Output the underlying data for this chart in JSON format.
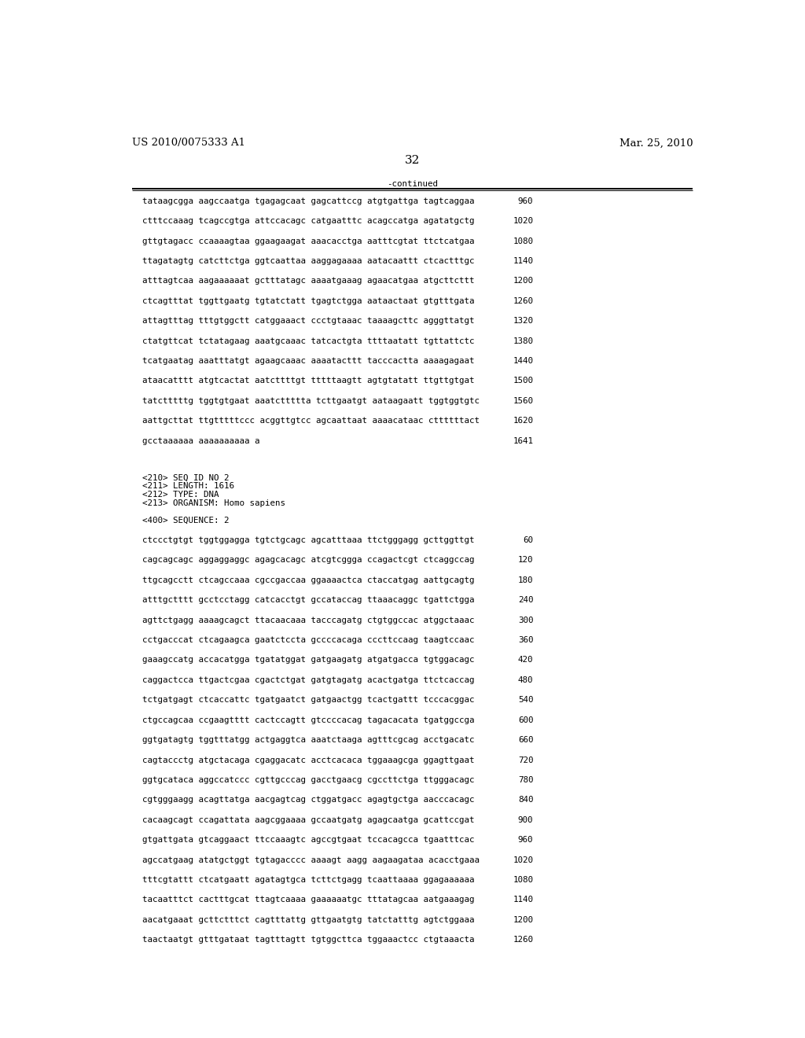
{
  "page_number": "32",
  "header_left": "US 2010/0075333 A1",
  "header_right": "Mar. 25, 2010",
  "continued_label": "-continued",
  "background_color": "#ffffff",
  "text_color": "#000000",
  "font_size_header": 9.5,
  "font_size_body": 7.8,
  "font_size_page_num": 11,
  "sequence_lines_part1": [
    [
      "tataagcgga aagccaatga tgagagcaat gagcattccg atgtgattga tagtcaggaa",
      "960"
    ],
    [
      "ctttccaaag tcagccgtga attccacagc catgaatttc acagccatga agatatgctg",
      "1020"
    ],
    [
      "gttgtagacc ccaaaagtaa ggaagaagat aaacacctga aatttcgtat ttctcatgaa",
      "1080"
    ],
    [
      "ttagatagtg catcttctga ggtcaattaa aaggagaaaa aatacaattt ctcactttgc",
      "1140"
    ],
    [
      "atttagtcaa aagaaaaaat gctttatagc aaaatgaaag agaacatgaa atgcttcttt",
      "1200"
    ],
    [
      "ctcagtttat tggttgaatg tgtatctatt tgagtctgga aataactaat gtgtttgata",
      "1260"
    ],
    [
      "attagtttag tttgtggctt catggaaact ccctgtaaac taaaagcttc agggttatgt",
      "1320"
    ],
    [
      "ctatgttcat tctatagaag aaatgcaaac tatcactgta ttttaatatt tgttattctc",
      "1380"
    ],
    [
      "tcatgaatag aaatttatgt agaagcaaac aaaatacttt tacccactta aaaagagaat",
      "1440"
    ],
    [
      "ataacatttt atgtcactat aatcttttgt tttttaagtt agtgtatatt ttgttgtgat",
      "1500"
    ],
    [
      "tatctttttg tggtgtgaat aaatcttttta tcttgaatgt aataagaatt tggtggtgtc",
      "1560"
    ],
    [
      "aattgcttat ttgtttttccc acggttgtcc agcaattaat aaaacataac cttttttact",
      "1620"
    ],
    [
      "gcctaaaaaa aaaaaaaaaa a",
      "1641"
    ]
  ],
  "metadata_lines": [
    "<210> SEQ ID NO 2",
    "<211> LENGTH: 1616",
    "<212> TYPE: DNA",
    "<213> ORGANISM: Homo sapiens"
  ],
  "sequence2_label": "<400> SEQUENCE: 2",
  "sequence_lines_part2": [
    [
      "ctccctgtgt tggtggagga tgtctgcagc agcatttaaa ttctgggagg gcttggttgt",
      "60"
    ],
    [
      "cagcagcagc aggaggaggc agagcacagc atcgtcggga ccagactcgt ctcaggccag",
      "120"
    ],
    [
      "ttgcagcctt ctcagccaaa cgccgaccaa ggaaaactca ctaccatgag aattgcagtg",
      "180"
    ],
    [
      "atttgctttt gcctcctagg catcacctgt gccataccag ttaaacaggc tgattctgga",
      "240"
    ],
    [
      "agttctgagg aaaagcagct ttacaacaaa tacccagatg ctgtggccac atggctaaac",
      "300"
    ],
    [
      "cctgacccat ctcagaagca gaatctccta gccccacaga cccttccaag taagtccaac",
      "360"
    ],
    [
      "gaaagccatg accacatgga tgatatggat gatgaagatg atgatgacca tgtggacagc",
      "420"
    ],
    [
      "caggactcca ttgactcgaa cgactctgat gatgtagatg acactgatga ttctcaccag",
      "480"
    ],
    [
      "tctgatgagt ctcaccattc tgatgaatct gatgaactgg tcactgattt tcccacggac",
      "540"
    ],
    [
      "ctgccagcaa ccgaagtttt cactccagtt gtccccacag tagacacata tgatggccga",
      "600"
    ],
    [
      "ggtgatagtg tggtttatgg actgaggtca aaatctaaga agtttcgcag acctgacatc",
      "660"
    ],
    [
      "cagtaccctg atgctacaga cgaggacatc acctcacaca tggaaagcga ggagttgaat",
      "720"
    ],
    [
      "ggtgcataca aggccatccc cgttgcccag gacctgaacg cgccttctga ttgggacagc",
      "780"
    ],
    [
      "cgtgggaagg acagttatga aacgagtcag ctggatgacc agagtgctga aacccacagc",
      "840"
    ],
    [
      "cacaagcagt ccagattata aagcggaaaa gccaatgatg agagcaatga gcattccgat",
      "900"
    ],
    [
      "gtgattgata gtcaggaact ttccaaagtc agccgtgaat tccacagcca tgaatttcac",
      "960"
    ],
    [
      "agccatgaag atatgctggt tgtagacccc aaaagt aagg aagaagataa acacctgaaa",
      "1020"
    ],
    [
      "tttcgtattt ctcatgaatt agatagtgca tcttctgagg tcaattaaaa ggagaaaaaa",
      "1080"
    ],
    [
      "tacaatttct cactttgcat ttagtcaaaa gaaaaaatgc tttatagcaa aatgaaagag",
      "1140"
    ],
    [
      "aacatgaaat gcttctttct cagtttattg gttgaatgtg tatctatttg agtctggaaa",
      "1200"
    ],
    [
      "taactaatgt gtttgataat tagtttagtt tgtggcttca tggaaactcc ctgtaaacta",
      "1260"
    ]
  ]
}
